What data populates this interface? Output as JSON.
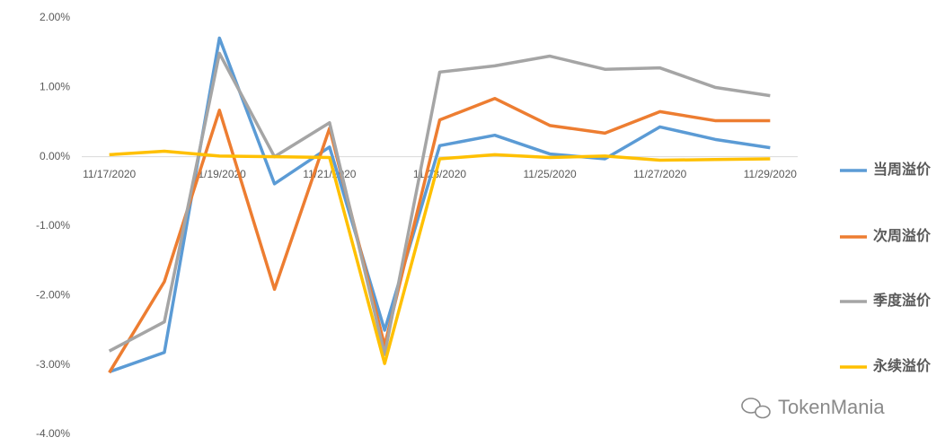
{
  "chart_data": {
    "type": "line",
    "categories": [
      "11/17/2020",
      null,
      "11/19/2020",
      null,
      "11/21/2020",
      null,
      "11/23/2020",
      null,
      "11/25/2020",
      null,
      "11/27/2020",
      null,
      "11/29/2020"
    ],
    "series": [
      {
        "name": "当周溢价",
        "color": "#5b9bd5",
        "values": [
          -3.1,
          -2.82,
          1.71,
          -0.39,
          0.14,
          -2.5,
          0.16,
          0.31,
          0.04,
          -0.03,
          0.43,
          0.25,
          0.13
        ]
      },
      {
        "name": "次周溢价",
        "color": "#ed7d31",
        "values": [
          -3.11,
          -1.8,
          0.67,
          -1.91,
          0.41,
          -2.72,
          0.53,
          0.84,
          0.45,
          0.34,
          0.65,
          0.52,
          0.52
        ]
      },
      {
        "name": "季度溢价",
        "color": "#a5a5a5",
        "values": [
          -2.8,
          -2.38,
          1.49,
          0.0,
          0.49,
          -2.85,
          1.22,
          1.31,
          1.45,
          1.26,
          1.28,
          1.0,
          0.88
        ]
      },
      {
        "name": "永续溢价",
        "color": "#ffc000",
        "values": [
          0.03,
          0.08,
          0.01,
          0.0,
          -0.01,
          -2.98,
          -0.03,
          0.03,
          -0.01,
          0.01,
          -0.05,
          -0.04,
          -0.03
        ]
      }
    ],
    "ylim": [
      -4,
      2
    ],
    "yticks": [
      {
        "value": 2,
        "label": "2.00%"
      },
      {
        "value": 1,
        "label": "1.00%"
      },
      {
        "value": 0,
        "label": "0.00%"
      },
      {
        "value": -1,
        "label": "-1.00%"
      },
      {
        "value": -2,
        "label": "-2.00%"
      },
      {
        "value": -3,
        "label": "-3.00%"
      },
      {
        "value": -4,
        "label": "-4.00%"
      }
    ],
    "grid": false,
    "legend": "right",
    "watermark": "TokenMania"
  }
}
